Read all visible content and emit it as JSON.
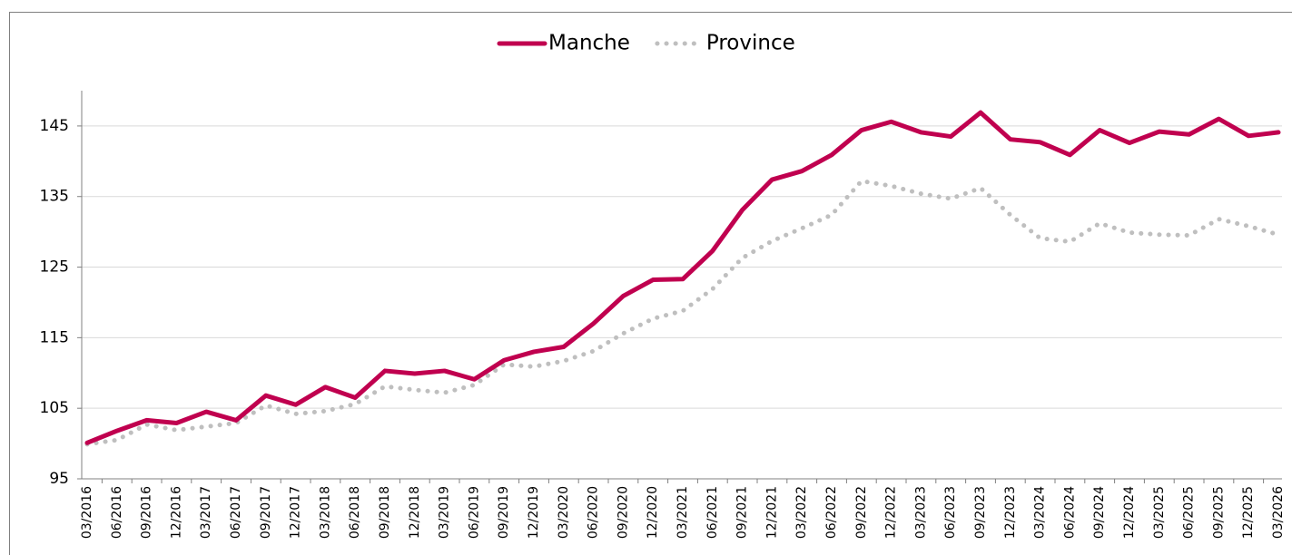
{
  "chart_data": {
    "type": "line",
    "categories": [
      "03/2016",
      "06/2016",
      "09/2016",
      "12/2016",
      "03/2017",
      "06/2017",
      "09/2017",
      "12/2017",
      "03/2018",
      "06/2018",
      "09/2018",
      "12/2018",
      "03/2019",
      "06/2019",
      "09/2019",
      "12/2019",
      "03/2020",
      "06/2020",
      "09/2020",
      "12/2020",
      "03/2021",
      "06/2021",
      "09/2021",
      "12/2021",
      "03/2022",
      "06/2022",
      "09/2022",
      "12/2022",
      "03/2023",
      "06/2023",
      "09/2023",
      "12/2023",
      "03/2024",
      "06/2024",
      "09/2024",
      "12/2024",
      "03/2025",
      "06/2025",
      "09/2025",
      "12/2025",
      "03/2026"
    ],
    "series": [
      {
        "name": "Manche",
        "color": "#c0004f",
        "style": "solid",
        "values": [
          100.1,
          101.8,
          103.3,
          102.9,
          104.5,
          103.3,
          106.8,
          105.5,
          108,
          106.5,
          110.3,
          109.9,
          110.3,
          109.1,
          111.8,
          113,
          113.7,
          117,
          120.9,
          123.2,
          123.3,
          127.3,
          133.1,
          137.4,
          138.6,
          140.9,
          144.4,
          145.6,
          144.1,
          143.5,
          146.9,
          143.1,
          142.7,
          140.9,
          144.4,
          142.6,
          144.2,
          143.8,
          146,
          143.6,
          144.1
        ]
      },
      {
        "name": "Province",
        "color": "#bfbfbf",
        "style": "dotted",
        "values": [
          99.9,
          100.5,
          102.7,
          101.9,
          102.4,
          102.9,
          105.4,
          104.2,
          104.6,
          105.6,
          108.1,
          107.6,
          107.2,
          108.3,
          111.2,
          110.9,
          111.7,
          113.1,
          115.6,
          117.7,
          118.8,
          121.9,
          126.3,
          128.7,
          130.5,
          132.4,
          137.2,
          136.5,
          135.4,
          134.7,
          136.2,
          132.4,
          129.1,
          128.6,
          131.2,
          129.9,
          129.6,
          129.5,
          131.8,
          130.8,
          129.6
        ]
      }
    ],
    "ylim": [
      95,
      150
    ],
    "yticks": [
      95,
      105,
      115,
      125,
      135,
      145
    ],
    "grid": true,
    "legend": "top"
  }
}
